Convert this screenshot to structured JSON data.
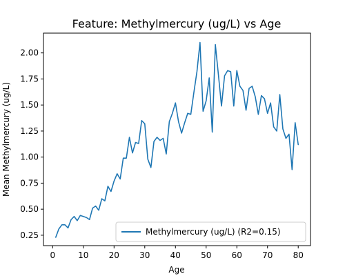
{
  "chart_data": {
    "type": "line",
    "title": "Feature: Methylmercury (ug/L) vs Age",
    "xlabel": "Age",
    "ylabel": "Mean Methylmercury (ug/L)",
    "xlim": [
      -3.0,
      84.0
    ],
    "ylim": [
      0.15,
      2.19
    ],
    "xticks": [
      0,
      10,
      20,
      30,
      40,
      50,
      60,
      70,
      80
    ],
    "yticks": [
      0.25,
      0.5,
      0.75,
      1.0,
      1.25,
      1.5,
      1.75,
      2.0
    ],
    "ytick_labels": [
      "0.25",
      "0.50",
      "0.75",
      "1.00",
      "1.25",
      "1.50",
      "1.75",
      "2.00"
    ],
    "grid": false,
    "legend_position": "lower right",
    "series": [
      {
        "name": "Methylmercury (ug/L) (R2=0.15)",
        "color": "#1f77b4",
        "x": [
          1,
          2,
          3,
          4,
          5,
          6,
          7,
          8,
          9,
          10,
          11,
          12,
          13,
          14,
          15,
          16,
          17,
          18,
          19,
          20,
          21,
          22,
          23,
          24,
          25,
          26,
          27,
          28,
          29,
          30,
          31,
          32,
          33,
          34,
          35,
          36,
          37,
          38,
          39,
          40,
          41,
          42,
          43,
          44,
          45,
          46,
          47,
          48,
          49,
          50,
          51,
          52,
          53,
          54,
          55,
          56,
          57,
          58,
          59,
          60,
          61,
          62,
          63,
          64,
          65,
          66,
          67,
          68,
          69,
          70,
          71,
          72,
          73,
          74,
          75,
          76,
          77,
          78,
          79,
          80
        ],
        "y": [
          0.23,
          0.31,
          0.35,
          0.35,
          0.32,
          0.4,
          0.43,
          0.39,
          0.44,
          0.43,
          0.42,
          0.4,
          0.51,
          0.53,
          0.49,
          0.6,
          0.58,
          0.72,
          0.67,
          0.77,
          0.84,
          0.79,
          0.99,
          0.99,
          1.19,
          1.04,
          1.14,
          1.13,
          1.35,
          1.32,
          0.98,
          0.9,
          1.15,
          1.19,
          1.16,
          1.18,
          1.03,
          1.34,
          1.42,
          1.52,
          1.34,
          1.23,
          1.33,
          1.42,
          1.41,
          1.62,
          1.82,
          2.1,
          1.44,
          1.54,
          1.76,
          1.24,
          2.08,
          1.79,
          1.49,
          1.78,
          1.83,
          1.82,
          1.49,
          1.83,
          1.68,
          1.64,
          1.45,
          1.66,
          1.68,
          1.58,
          1.41,
          1.59,
          1.56,
          1.42,
          1.52,
          1.29,
          1.25,
          1.6,
          1.27,
          1.18,
          1.22,
          0.88,
          1.33,
          1.12
        ]
      }
    ]
  }
}
